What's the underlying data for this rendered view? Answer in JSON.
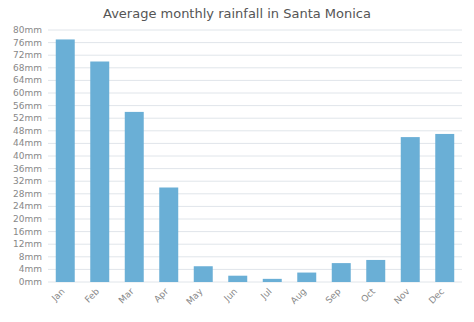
{
  "chart_data": {
    "type": "bar",
    "title": "Average monthly rainfall in Santa Monica",
    "categories": [
      "Jan",
      "Feb",
      "Mar",
      "Apr",
      "May",
      "Jun",
      "Jul",
      "Aug",
      "Sep",
      "Oct",
      "Nov",
      "Dec"
    ],
    "values": [
      77,
      70,
      54,
      30,
      5,
      2,
      1,
      3,
      6,
      7,
      46,
      47
    ],
    "color": "#6aafd6",
    "ylim": [
      0,
      80
    ],
    "yticks": [
      {
        "value": 0,
        "label": "0mm"
      },
      {
        "value": 4,
        "label": "4mm"
      },
      {
        "value": 8,
        "label": "8mm"
      },
      {
        "value": 12,
        "label": "12mm"
      },
      {
        "value": 16,
        "label": "16mm"
      },
      {
        "value": 20,
        "label": "20mm"
      },
      {
        "value": 24,
        "label": "24mm"
      },
      {
        "value": 28,
        "label": "28mm"
      },
      {
        "value": 32,
        "label": "32mm"
      },
      {
        "value": 36,
        "label": "36mm"
      },
      {
        "value": 40,
        "label": "40mm"
      },
      {
        "value": 44,
        "label": "44mm"
      },
      {
        "value": 48,
        "label": "48mm"
      },
      {
        "value": 52,
        "label": "52mm"
      },
      {
        "value": 56,
        "label": "56mm"
      },
      {
        "value": 60,
        "label": "60mm"
      },
      {
        "value": 64,
        "label": "64mm"
      },
      {
        "value": 68,
        "label": "68mm"
      },
      {
        "value": 72,
        "label": "72mm"
      },
      {
        "value": 76,
        "label": "76mm"
      },
      {
        "value": 80,
        "label": "80mm"
      }
    ],
    "grid": true
  }
}
